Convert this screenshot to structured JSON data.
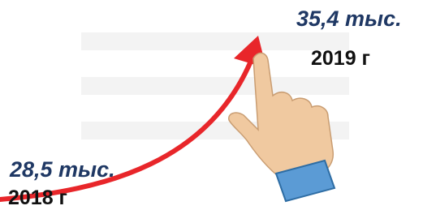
{
  "start": {
    "value": "28,5 тыс.",
    "year": "2018 г"
  },
  "end": {
    "value": "35,4 тыс.",
    "year": "2019 г"
  }
}
